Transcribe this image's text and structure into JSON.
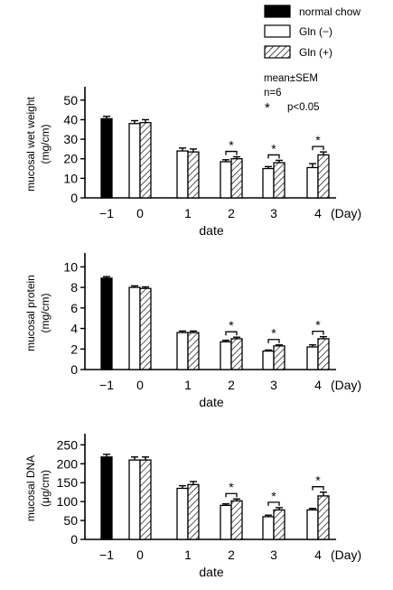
{
  "legend": {
    "items": [
      {
        "label": "normal chow",
        "style": "solid"
      },
      {
        "label": "Gln (−)",
        "style": "empty"
      },
      {
        "label": "Gln (+)",
        "style": "hatched"
      }
    ],
    "stat_line": "mean±SEM",
    "n_line": "n=6",
    "sig_mark": "*",
    "sig_text": "p<0.05"
  },
  "chart_data": [
    {
      "type": "bar",
      "ylabel": "mucosal wet weight",
      "yunit": "(mg/cm)",
      "xlabel": "date",
      "unit_label": "(Day)",
      "ylim": [
        0,
        55
      ],
      "yticks": [
        0,
        10,
        20,
        30,
        40,
        50
      ],
      "categories": [
        "−1",
        "0",
        "1",
        "2",
        "3",
        "4"
      ],
      "series": [
        {
          "name": "normal chow",
          "values": [
            40.5,
            null,
            null,
            null,
            null,
            null
          ],
          "errors": [
            1.2,
            null,
            null,
            null,
            null,
            null
          ]
        },
        {
          "name": "Gln (−)",
          "values": [
            null,
            38,
            24,
            18.5,
            15,
            15.5
          ],
          "errors": [
            null,
            1.5,
            1.5,
            1,
            1,
            2
          ]
        },
        {
          "name": "Gln (+)",
          "values": [
            null,
            38.5,
            23.5,
            20,
            18,
            22
          ],
          "errors": [
            null,
            1.5,
            1.5,
            1,
            1.2,
            1.5
          ]
        }
      ],
      "significant": [
        "2",
        "3",
        "4"
      ]
    },
    {
      "type": "bar",
      "ylabel": "mucosal protein",
      "yunit": "(mg/cm)",
      "xlabel": "date",
      "unit_label": "(Day)",
      "ylim": [
        0,
        11
      ],
      "yticks": [
        0,
        2,
        4,
        6,
        8,
        10
      ],
      "categories": [
        "−1",
        "0",
        "1",
        "2",
        "3",
        "4"
      ],
      "series": [
        {
          "name": "normal chow",
          "values": [
            8.9,
            null,
            null,
            null,
            null,
            null
          ],
          "errors": [
            0.15,
            null,
            null,
            null,
            null,
            null
          ]
        },
        {
          "name": "Gln (−)",
          "values": [
            null,
            8.0,
            3.6,
            2.7,
            1.8,
            2.2
          ],
          "errors": [
            null,
            0.15,
            0.15,
            0.15,
            0.1,
            0.2
          ]
        },
        {
          "name": "Gln (+)",
          "values": [
            null,
            7.9,
            3.6,
            3.0,
            2.3,
            3.0
          ],
          "errors": [
            null,
            0.15,
            0.15,
            0.15,
            0.1,
            0.2
          ]
        }
      ],
      "significant": [
        "2",
        "3",
        "4"
      ]
    },
    {
      "type": "bar",
      "ylabel": "mucosal DNA",
      "yunit": "(μg/cm)",
      "xlabel": "date",
      "unit_label": "(Day)",
      "ylim": [
        0,
        270
      ],
      "yticks": [
        0,
        50,
        100,
        150,
        200,
        250
      ],
      "categories": [
        "−1",
        "0",
        "1",
        "2",
        "3",
        "4"
      ],
      "series": [
        {
          "name": "normal chow",
          "values": [
            218,
            null,
            null,
            null,
            null,
            null
          ],
          "errors": [
            7,
            null,
            null,
            null,
            null,
            null
          ]
        },
        {
          "name": "Gln (−)",
          "values": [
            null,
            210,
            135,
            90,
            60,
            78
          ],
          "errors": [
            null,
            8,
            7,
            4,
            4,
            4
          ]
        },
        {
          "name": "Gln (+)",
          "values": [
            null,
            210,
            145,
            102,
            78,
            115
          ],
          "errors": [
            null,
            8,
            8,
            5,
            6,
            10
          ]
        }
      ],
      "significant": [
        "2",
        "3",
        "4"
      ]
    }
  ]
}
